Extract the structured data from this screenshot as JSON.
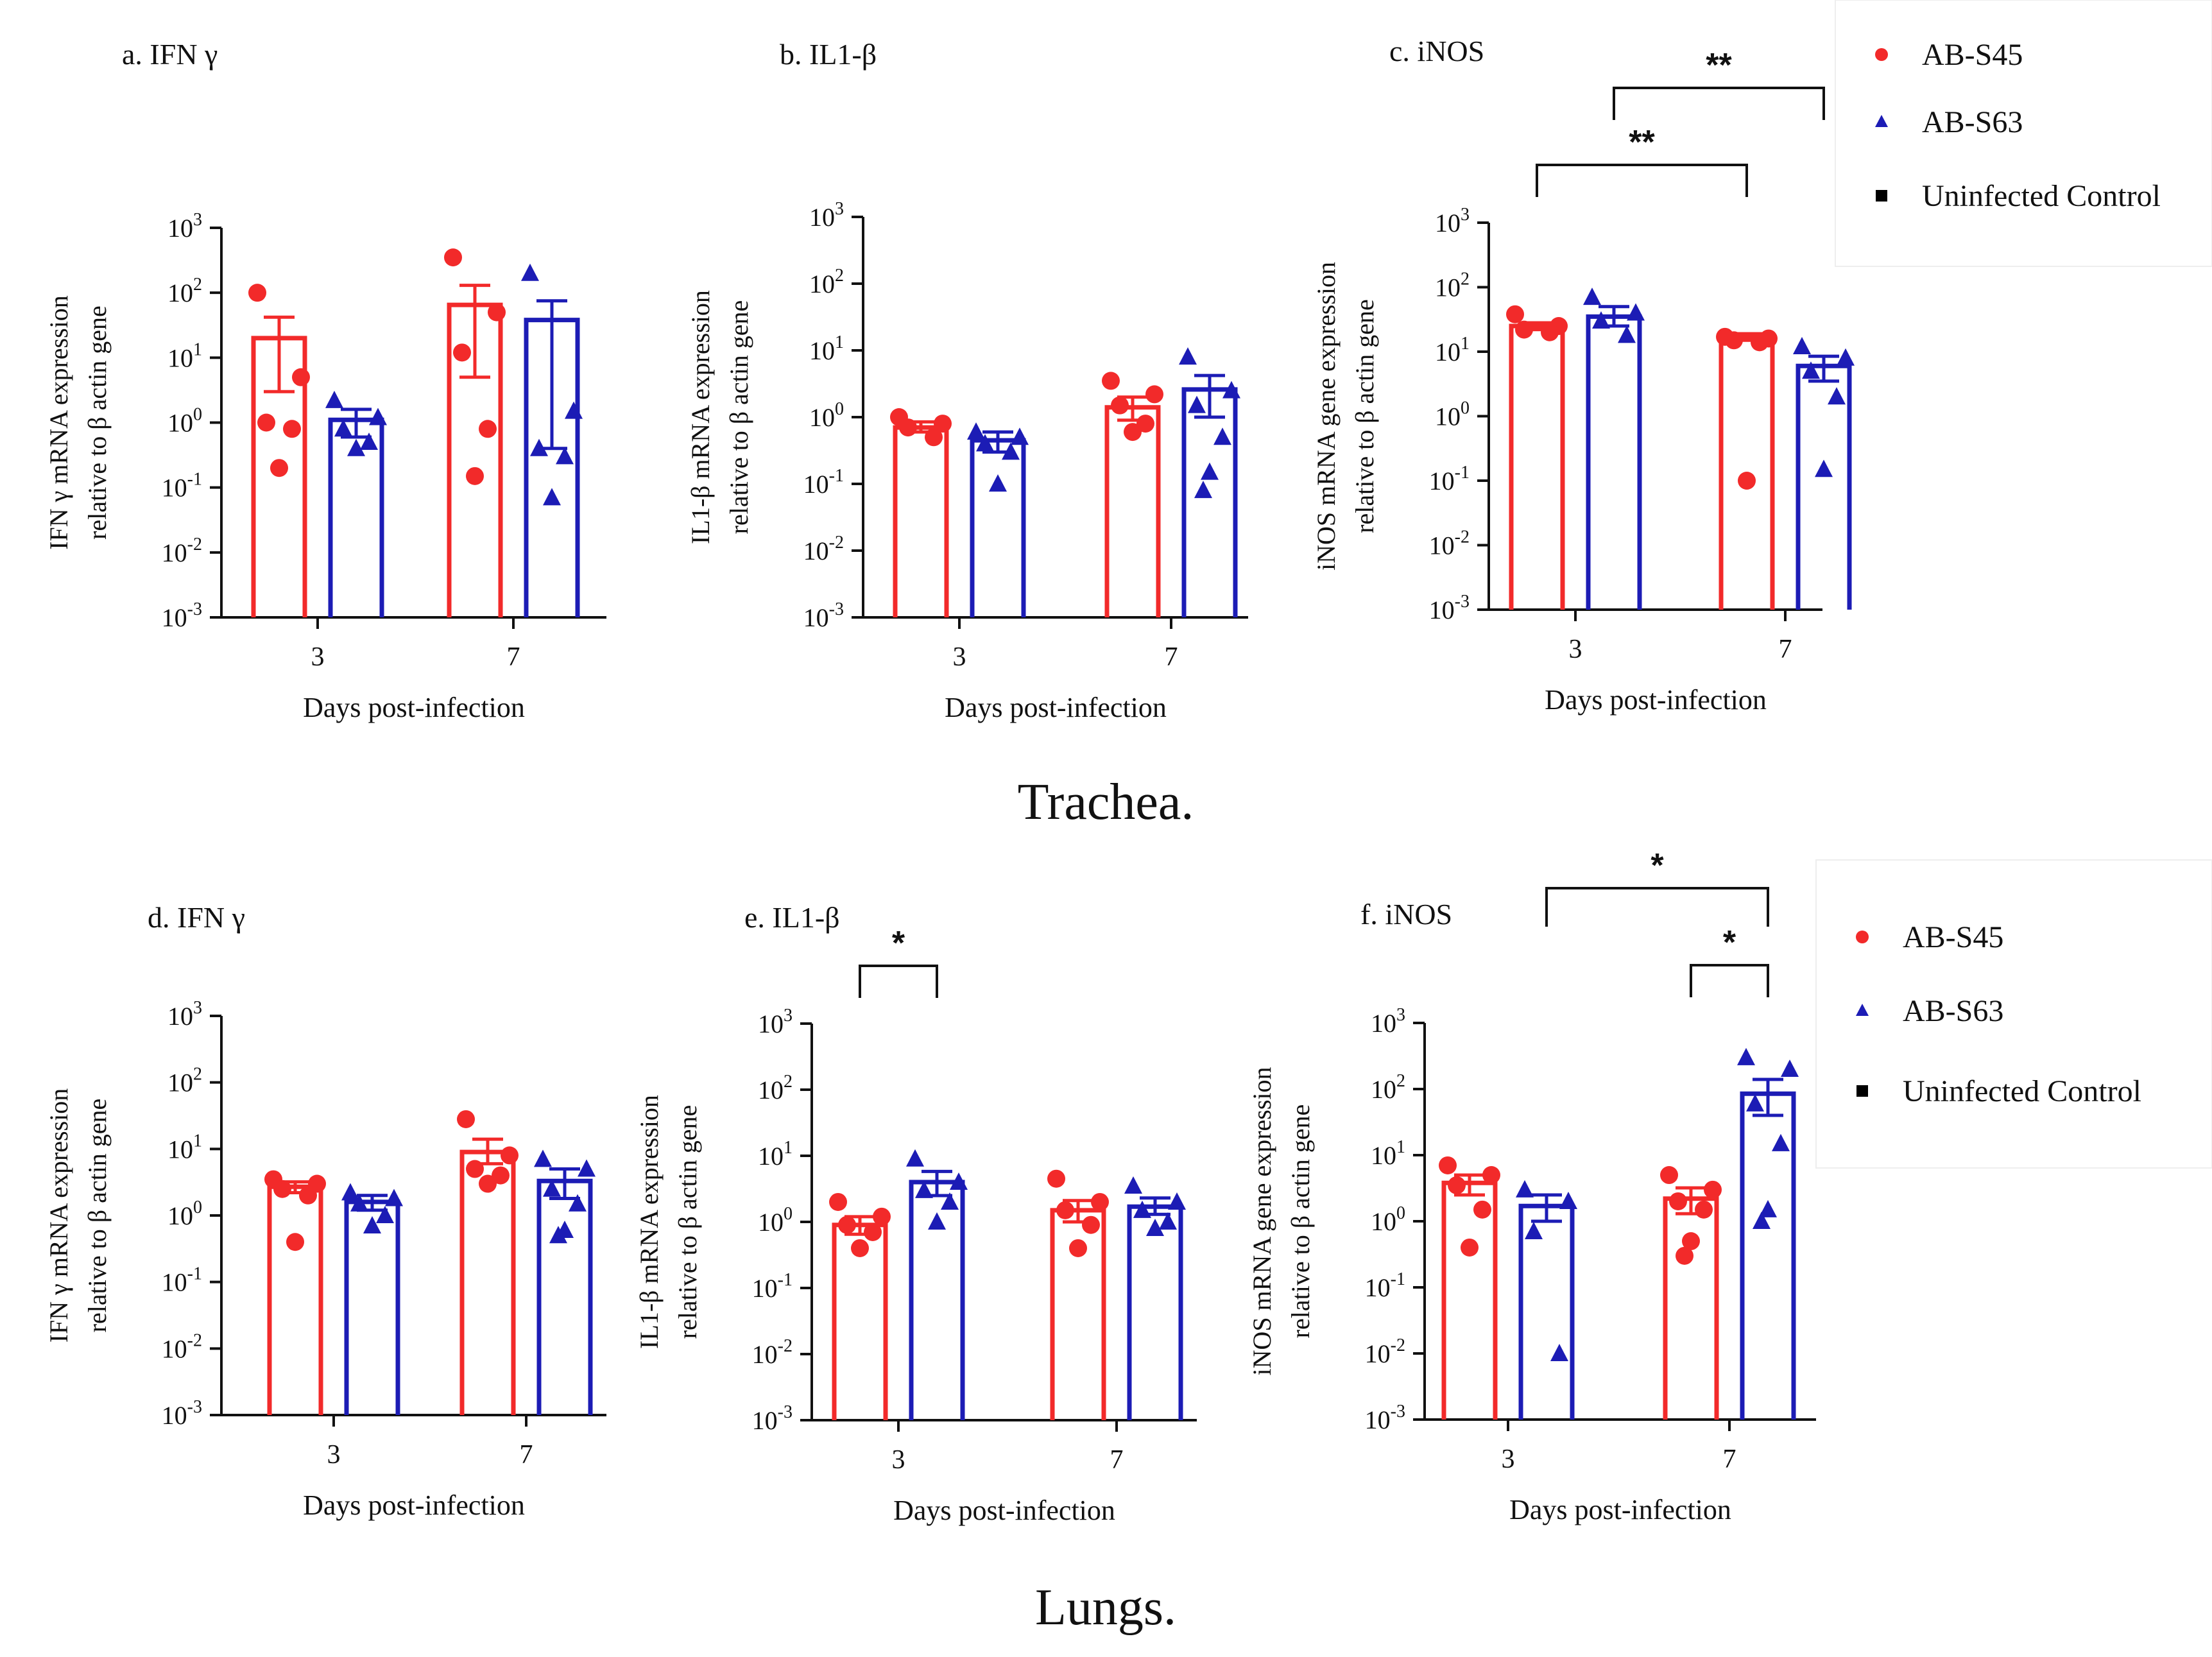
{
  "sections": {
    "top": "Trachea.",
    "bottom": "Lungs."
  },
  "legend": [
    {
      "label": "AB-S45",
      "color": "#f22a2a",
      "marker": "circle"
    },
    {
      "label": "AB-S63",
      "color": "#1c1cb5",
      "marker": "triangle"
    },
    {
      "label": "Uninfected Control",
      "color": "#000000",
      "marker": "square"
    }
  ],
  "colors": {
    "s45": "#f22a2a",
    "s63": "#1c1cb5"
  },
  "chart_data": [
    {
      "type": "bar",
      "title": "a. IFN γ",
      "xlabel": "Days post-infection",
      "ylabel_lines": [
        "IFN γ mRNA expression",
        "relative to β actin gene"
      ],
      "categories": [
        "3",
        "7"
      ],
      "yscale": "log",
      "ylim": [
        0.001,
        1000
      ],
      "yticks": [
        {
          "b": "10",
          "e": "3"
        },
        {
          "b": "10",
          "e": "2"
        },
        {
          "b": "10",
          "e": "1"
        },
        {
          "b": "10",
          "e": "0"
        },
        {
          "b": "10",
          "e": "-1"
        },
        {
          "b": "10",
          "e": "-2"
        },
        {
          "b": "10",
          "e": "-3"
        }
      ],
      "series": [
        {
          "name": "AB-S45",
          "values": [
            20,
            65
          ],
          "errors": [
            [
              3,
              42
            ],
            [
              5,
              130
            ]
          ],
          "points": [
            [
              100,
              5,
              1,
              0.8,
              0.2
            ],
            [
              350,
              50,
              12,
              0.8,
              0.15
            ]
          ]
        },
        {
          "name": "AB-S63",
          "values": [
            1.1,
            38
          ],
          "errors": [
            [
              0.6,
              1.6
            ],
            [
              0.4,
              75
            ]
          ],
          "points": [
            [
              2.2,
              1.2,
              0.8,
              0.5,
              0.4
            ],
            [
              200,
              1.5,
              0.4,
              0.3,
              0.07
            ]
          ]
        }
      ],
      "significance": []
    },
    {
      "type": "bar",
      "title": "b. IL1-β",
      "xlabel": "Days post-infection",
      "ylabel_lines": [
        "IL1-β mRNA expression",
        "relative to β actin gene"
      ],
      "categories": [
        "3",
        "7"
      ],
      "yscale": "log",
      "ylim": [
        0.001,
        1000
      ],
      "yticks": [
        {
          "b": "10",
          "e": "3"
        },
        {
          "b": "10",
          "e": "2"
        },
        {
          "b": "10",
          "e": "1"
        },
        {
          "b": "10",
          "e": "0"
        },
        {
          "b": "10",
          "e": "-1"
        },
        {
          "b": "10",
          "e": "-2"
        },
        {
          "b": "10",
          "e": "-3"
        }
      ],
      "series": [
        {
          "name": "AB-S45",
          "values": [
            0.7,
            1.4
          ],
          "errors": [
            [
              0.6,
              0.85
            ],
            [
              0.9,
              2.0
            ]
          ],
          "points": [
            [
              1.0,
              0.8,
              0.7,
              0.5
            ],
            [
              3.5,
              2.2,
              1.5,
              0.8,
              0.6
            ]
          ]
        },
        {
          "name": "AB-S63",
          "values": [
            0.45,
            2.6
          ],
          "errors": [
            [
              0.3,
              0.6
            ],
            [
              1.0,
              4.2
            ]
          ],
          "points": [
            [
              0.6,
              0.5,
              0.4,
              0.3,
              0.1
            ],
            [
              8,
              2.5,
              1.5,
              0.5,
              0.15,
              0.08
            ]
          ]
        }
      ],
      "significance": []
    },
    {
      "type": "bar",
      "title": "c. iNOS",
      "xlabel": "Days post-infection",
      "ylabel_lines": [
        "iNOS mRNA gene expression",
        "relative to β actin gene"
      ],
      "categories": [
        "3",
        "7"
      ],
      "yscale": "log",
      "ylim": [
        0.001,
        1000
      ],
      "yticks": [
        {
          "b": "10",
          "e": "3"
        },
        {
          "b": "10",
          "e": "2"
        },
        {
          "b": "10",
          "e": "1"
        },
        {
          "b": "10",
          "e": "0"
        },
        {
          "b": "10",
          "e": "-1"
        },
        {
          "b": "10",
          "e": "-2"
        },
        {
          "b": "10",
          "e": "-3"
        }
      ],
      "series": [
        {
          "name": "AB-S45",
          "values": [
            25,
            17
          ],
          "errors": [
            [
              22,
              28
            ],
            [
              15,
              19
            ]
          ],
          "points": [
            [
              38,
              25,
              22,
              20
            ],
            [
              17,
              16,
              15,
              14,
              0.1
            ]
          ]
        },
        {
          "name": "AB-S63",
          "values": [
            35,
            6
          ],
          "errors": [
            [
              25,
              50
            ],
            [
              3.5,
              8.5
            ]
          ],
          "points": [
            [
              70,
              40,
              30,
              18
            ],
            [
              12,
              8,
              5,
              2,
              0.15
            ]
          ]
        }
      ],
      "significance": [
        {
          "from": [
            0,
            0
          ],
          "to": [
            1,
            0
          ],
          "label": "**",
          "level": 1
        },
        {
          "from": [
            0,
            1
          ],
          "to": [
            1,
            1
          ],
          "label": "**",
          "level": 2
        }
      ]
    },
    {
      "type": "bar",
      "title": "d. IFN γ",
      "xlabel": "Days post-infection",
      "ylabel_lines": [
        "IFN γ mRNA expression",
        "relative to β actin gene"
      ],
      "categories": [
        "3",
        "7"
      ],
      "yscale": "log",
      "ylim": [
        0.001,
        1000
      ],
      "yticks": [
        {
          "b": "10",
          "e": "3"
        },
        {
          "b": "10",
          "e": "2"
        },
        {
          "b": "10",
          "e": "1"
        },
        {
          "b": "10",
          "e": "0"
        },
        {
          "b": "10",
          "e": "-1"
        },
        {
          "b": "10",
          "e": "-2"
        },
        {
          "b": "10",
          "e": "-3"
        }
      ],
      "series": [
        {
          "name": "AB-S45",
          "values": [
            2.7,
            9
          ],
          "errors": [
            [
              2.2,
              3.2
            ],
            [
              6,
              14
            ]
          ],
          "points": [
            [
              3.5,
              3,
              2.5,
              2,
              0.4
            ],
            [
              28,
              8,
              5,
              4,
              3
            ]
          ]
        },
        {
          "name": "AB-S63",
          "values": [
            1.6,
            3.3
          ],
          "errors": [
            [
              1.2,
              2.0
            ],
            [
              1.8,
              5
            ]
          ],
          "points": [
            [
              2.2,
              1.8,
              1.5,
              1.0,
              0.7
            ],
            [
              7,
              5,
              2.5,
              1.5,
              0.6,
              0.5
            ]
          ]
        }
      ],
      "significance": []
    },
    {
      "type": "bar",
      "title": "e. IL1-β",
      "xlabel": "Days post-infection",
      "ylabel_lines": [
        "IL1-β mRNA expression",
        "relative to β actin gene"
      ],
      "categories": [
        "3",
        "7"
      ],
      "yscale": "log",
      "ylim": [
        0.001,
        1000
      ],
      "yticks": [
        {
          "b": "10",
          "e": "3"
        },
        {
          "b": "10",
          "e": "2"
        },
        {
          "b": "10",
          "e": "1"
        },
        {
          "b": "10",
          "e": "0"
        },
        {
          "b": "10",
          "e": "-1"
        },
        {
          "b": "10",
          "e": "-2"
        },
        {
          "b": "10",
          "e": "-3"
        }
      ],
      "series": [
        {
          "name": "AB-S45",
          "values": [
            0.9,
            1.5
          ],
          "errors": [
            [
              0.65,
              1.2
            ],
            [
              1.0,
              2.1
            ]
          ],
          "points": [
            [
              2.0,
              1.2,
              0.9,
              0.7,
              0.4
            ],
            [
              4.5,
              2.0,
              1.5,
              0.9,
              0.4
            ]
          ]
        },
        {
          "name": "AB-S63",
          "values": [
            4,
            1.7
          ],
          "errors": [
            [
              2.5,
              5.8
            ],
            [
              1.3,
              2.3
            ]
          ],
          "points": [
            [
              9,
              4,
              3,
              2,
              1.0
            ],
            [
              3.5,
              2.0,
              1.5,
              1.0,
              0.8
            ]
          ]
        }
      ],
      "significance": [
        {
          "from": [
            0,
            0
          ],
          "to": [
            0,
            1
          ],
          "label": "*",
          "level": 1
        }
      ]
    },
    {
      "type": "bar",
      "title": "f. iNOS",
      "xlabel": "Days post-infection",
      "ylabel_lines": [
        "iNOS mRNA gene expression",
        "relative to β actin gene"
      ],
      "categories": [
        "3",
        "7"
      ],
      "yscale": "log",
      "ylim": [
        0.001,
        1000
      ],
      "yticks": [
        {
          "b": "10",
          "e": "3"
        },
        {
          "b": "10",
          "e": "2"
        },
        {
          "b": "10",
          "e": "1"
        },
        {
          "b": "10",
          "e": "0"
        },
        {
          "b": "10",
          "e": "-1"
        },
        {
          "b": "10",
          "e": "-2"
        },
        {
          "b": "10",
          "e": "-3"
        }
      ],
      "series": [
        {
          "name": "AB-S45",
          "values": [
            3.8,
            2.2
          ],
          "errors": [
            [
              2.5,
              5
            ],
            [
              1.3,
              3.2
            ]
          ],
          "points": [
            [
              7,
              5,
              3.5,
              1.5,
              0.4
            ],
            [
              5,
              3,
              2,
              1.5,
              0.5,
              0.3
            ]
          ]
        },
        {
          "name": "AB-S63",
          "values": [
            1.7,
            85
          ],
          "errors": [
            [
              1.0,
              2.5
            ],
            [
              40,
              140
            ]
          ],
          "points": [
            [
              3,
              2,
              0.7,
              0.01
            ],
            [
              300,
              200,
              60,
              15,
              1.5,
              1.0
            ]
          ]
        }
      ],
      "significance": [
        {
          "from": [
            0,
            1
          ],
          "to": [
            1,
            1
          ],
          "label": "*",
          "level": 2
        },
        {
          "from": [
            1,
            0
          ],
          "to": [
            1,
            1
          ],
          "label": "*",
          "level": 1
        }
      ]
    }
  ]
}
